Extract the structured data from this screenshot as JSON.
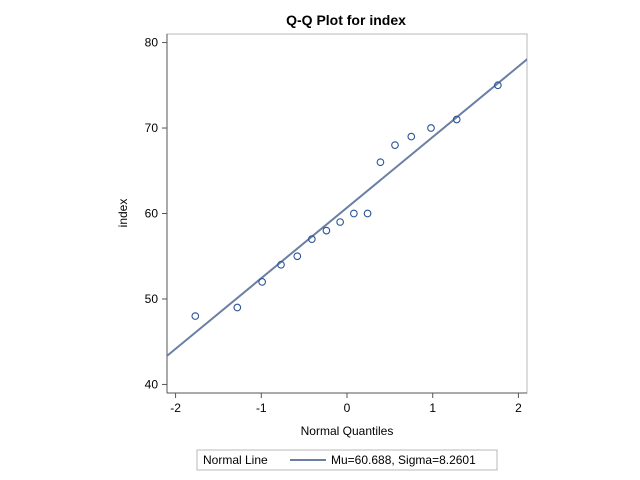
{
  "chart_data": {
    "type": "scatter",
    "title": "Q-Q Plot for index",
    "xlabel": "Normal Quantiles",
    "ylabel": "index",
    "xlim": [
      -2.1,
      2.1
    ],
    "ylim": [
      39,
      81
    ],
    "x_ticks": [
      -2,
      -1,
      0,
      1,
      2
    ],
    "x_tick_labels": [
      "-2",
      "-1",
      "0",
      "1",
      "2"
    ],
    "y_ticks": [
      40,
      50,
      60,
      70,
      80
    ],
    "y_tick_labels": [
      "40",
      "50",
      "60",
      "70",
      "80"
    ],
    "grid": false,
    "legend_position": "bottom",
    "series": [
      {
        "kind": "points",
        "marker": "open-circle",
        "color": "#2a5597",
        "x": [
          -1.77,
          -1.28,
          -0.99,
          -0.77,
          -0.58,
          -0.41,
          -0.24,
          -0.08,
          0.08,
          0.24,
          0.39,
          0.56,
          0.75,
          0.98,
          1.28,
          1.76
        ],
        "y": [
          48,
          49,
          52,
          54,
          55,
          57,
          58,
          59,
          60,
          60,
          66,
          68,
          69,
          70,
          71,
          75
        ]
      },
      {
        "kind": "line",
        "name": "Normal Line",
        "color": "#6a7fa3",
        "mu": 60.688,
        "sigma": 8.2601
      }
    ],
    "legend": {
      "title": "Normal Line",
      "entry": "Mu=60.688, Sigma=8.2601"
    }
  }
}
